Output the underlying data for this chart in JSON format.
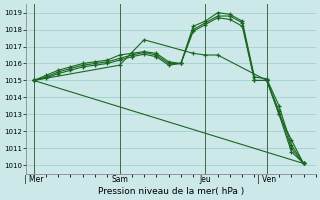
{
  "xlabel": "Pression niveau de la mer( hPa )",
  "background_color": "#cce8e8",
  "grid_color": "#99cccc",
  "line_color": "#1a6620",
  "ylim": [
    1009.5,
    1019.5
  ],
  "yticks": [
    1010,
    1011,
    1012,
    1013,
    1014,
    1015,
    1016,
    1017,
    1018,
    1019
  ],
  "day_labels": [
    " Mer",
    "Sam",
    "Jeu",
    "| Ven"
  ],
  "day_positions": [
    0.0,
    3.5,
    7.0,
    9.5
  ],
  "vline_positions": [
    0.0,
    3.5,
    7.0,
    9.5
  ],
  "xlim": [
    -0.3,
    11.5
  ],
  "series": [
    {
      "x": [
        0,
        0.5,
        1.0,
        1.5,
        2.0,
        2.5,
        3.0,
        3.5,
        4.0,
        4.5,
        5.0,
        5.5,
        6.0,
        6.5,
        7.0,
        7.5,
        8.0,
        8.5,
        9.0,
        9.5,
        10.0,
        10.5,
        11.0
      ],
      "y": [
        1015.0,
        1015.3,
        1015.6,
        1015.8,
        1016.0,
        1016.1,
        1016.2,
        1016.5,
        1016.6,
        1016.7,
        1016.6,
        1016.1,
        1016.0,
        1018.2,
        1018.5,
        1019.0,
        1018.9,
        1018.5,
        1015.2,
        1015.1,
        1013.5,
        1011.2,
        1010.1
      ]
    },
    {
      "x": [
        0,
        0.5,
        1.0,
        1.5,
        2.0,
        2.5,
        3.0,
        3.5,
        4.0,
        4.5,
        5.0,
        5.5,
        6.0,
        6.5,
        7.0,
        7.5,
        8.0,
        8.5,
        9.0,
        9.5,
        10.0,
        10.5,
        11.0
      ],
      "y": [
        1015.0,
        1015.2,
        1015.5,
        1015.7,
        1015.9,
        1016.0,
        1016.1,
        1016.3,
        1016.5,
        1016.65,
        1016.5,
        1016.0,
        1016.0,
        1018.0,
        1018.4,
        1018.8,
        1018.8,
        1018.4,
        1015.0,
        1015.0,
        1013.2,
        1011.0,
        1010.1
      ]
    },
    {
      "x": [
        0,
        0.5,
        1.0,
        1.5,
        2.0,
        2.5,
        3.0,
        3.5,
        4.0,
        4.5,
        5.0,
        5.5,
        6.0,
        6.5,
        7.0,
        7.5,
        8.0,
        8.5,
        9.0,
        9.5,
        10.0,
        10.5,
        11.0
      ],
      "y": [
        1015.0,
        1015.15,
        1015.4,
        1015.6,
        1015.8,
        1015.9,
        1016.0,
        1016.2,
        1016.4,
        1016.55,
        1016.4,
        1015.9,
        1016.0,
        1017.9,
        1018.3,
        1018.7,
        1018.6,
        1018.2,
        1015.0,
        1015.0,
        1013.0,
        1010.8,
        1010.1
      ]
    },
    {
      "x": [
        0,
        3.5,
        4.5,
        6.5,
        7.0,
        7.5,
        9.5,
        10.0,
        10.5,
        11.0
      ],
      "y": [
        1015.0,
        1015.9,
        1017.4,
        1016.6,
        1016.5,
        1016.5,
        1015.0,
        1013.0,
        1011.5,
        1010.1
      ]
    },
    {
      "x": [
        0,
        11.0
      ],
      "y": [
        1015.0,
        1010.1
      ]
    }
  ]
}
